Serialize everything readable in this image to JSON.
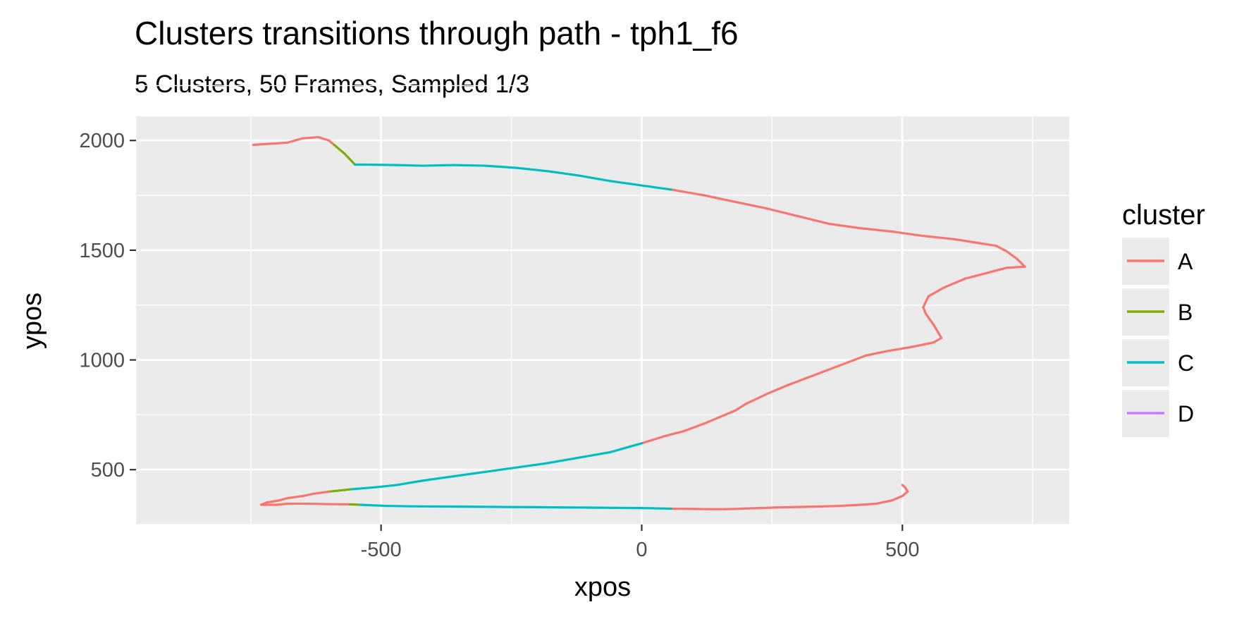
{
  "chart_data": {
    "type": "line",
    "title": "Clusters transitions through path - tph1_f6",
    "subtitle": "5 Clusters, 50 Frames, Sampled 1/3",
    "xlabel": "xpos",
    "ylabel": "ypos",
    "xlim": [
      -970,
      820
    ],
    "ylim": [
      250,
      2110
    ],
    "x_ticks": [
      -500,
      0,
      500
    ],
    "x_tick_labels": [
      "-500",
      "0",
      "500"
    ],
    "y_ticks": [
      500,
      1000,
      1500,
      2000
    ],
    "y_tick_labels": [
      "500",
      "1000",
      "1500",
      "2000"
    ],
    "grid": true,
    "legend": {
      "title": "cluster",
      "position": "right",
      "entries": [
        {
          "key": "A",
          "label": "A",
          "color": "#F8766D"
        },
        {
          "key": "B",
          "label": "B",
          "color": "#7CAE00"
        },
        {
          "key": "C",
          "label": "C",
          "color": "#00BFC4"
        },
        {
          "key": "D",
          "label": "D",
          "color": "#C77CFF"
        }
      ]
    },
    "path": {
      "x": [
        -745,
        -680,
        -650,
        -620,
        -600,
        -590,
        -570,
        -550,
        -530,
        -470,
        -420,
        -360,
        -300,
        -240,
        -180,
        -120,
        -60,
        0,
        60,
        120,
        180,
        240,
        300,
        360,
        420,
        480,
        540,
        600,
        640,
        680,
        700,
        720,
        735,
        700,
        660,
        620,
        580,
        550,
        540,
        545,
        560,
        570,
        575,
        560,
        520,
        470,
        430,
        380,
        330,
        280,
        240,
        200,
        180,
        150,
        120,
        80,
        40,
        0,
        -60,
        -120,
        -180,
        -240,
        -300,
        -360,
        -420,
        -470,
        -510,
        -560,
        -600,
        -630,
        -650,
        -680,
        -695,
        -720,
        -730,
        -725,
        -700,
        -680,
        -640,
        -600,
        -560,
        -540,
        -520,
        -490,
        -440,
        -380,
        -320,
        -260,
        -200,
        -150,
        -100,
        -50,
        0,
        60,
        100,
        130,
        160,
        180,
        200,
        230,
        260,
        300,
        340,
        380,
        420,
        450,
        480,
        500,
        510,
        505,
        500
      ],
      "y": [
        1980,
        1990,
        2010,
        2015,
        2000,
        1980,
        1940,
        1890,
        1890,
        1888,
        1885,
        1888,
        1885,
        1875,
        1860,
        1840,
        1815,
        1795,
        1775,
        1750,
        1720,
        1690,
        1655,
        1620,
        1600,
        1585,
        1565,
        1550,
        1535,
        1520,
        1495,
        1460,
        1425,
        1420,
        1395,
        1370,
        1330,
        1290,
        1240,
        1210,
        1160,
        1120,
        1100,
        1080,
        1060,
        1040,
        1020,
        975,
        930,
        885,
        845,
        800,
        770,
        740,
        710,
        675,
        650,
        620,
        580,
        555,
        530,
        510,
        490,
        470,
        450,
        430,
        420,
        410,
        400,
        390,
        380,
        370,
        360,
        350,
        340,
        340,
        340,
        345,
        345,
        343,
        342,
        340,
        338,
        335,
        333,
        332,
        331,
        330,
        329,
        328,
        327,
        326,
        325,
        322,
        321,
        320,
        320,
        321,
        323,
        325,
        328,
        330,
        332,
        335,
        340,
        345,
        360,
        380,
        400,
        420,
        430
      ]
    },
    "segments": [
      {
        "cluster": "A",
        "x0": -745,
        "x1": -600
      },
      {
        "cluster": "B",
        "x0": -600,
        "x1": -560
      },
      {
        "cluster": "C",
        "x0": -560,
        "x1": 0
      },
      {
        "cluster": "A",
        "x0": 0,
        "x1": 700
      }
    ]
  }
}
